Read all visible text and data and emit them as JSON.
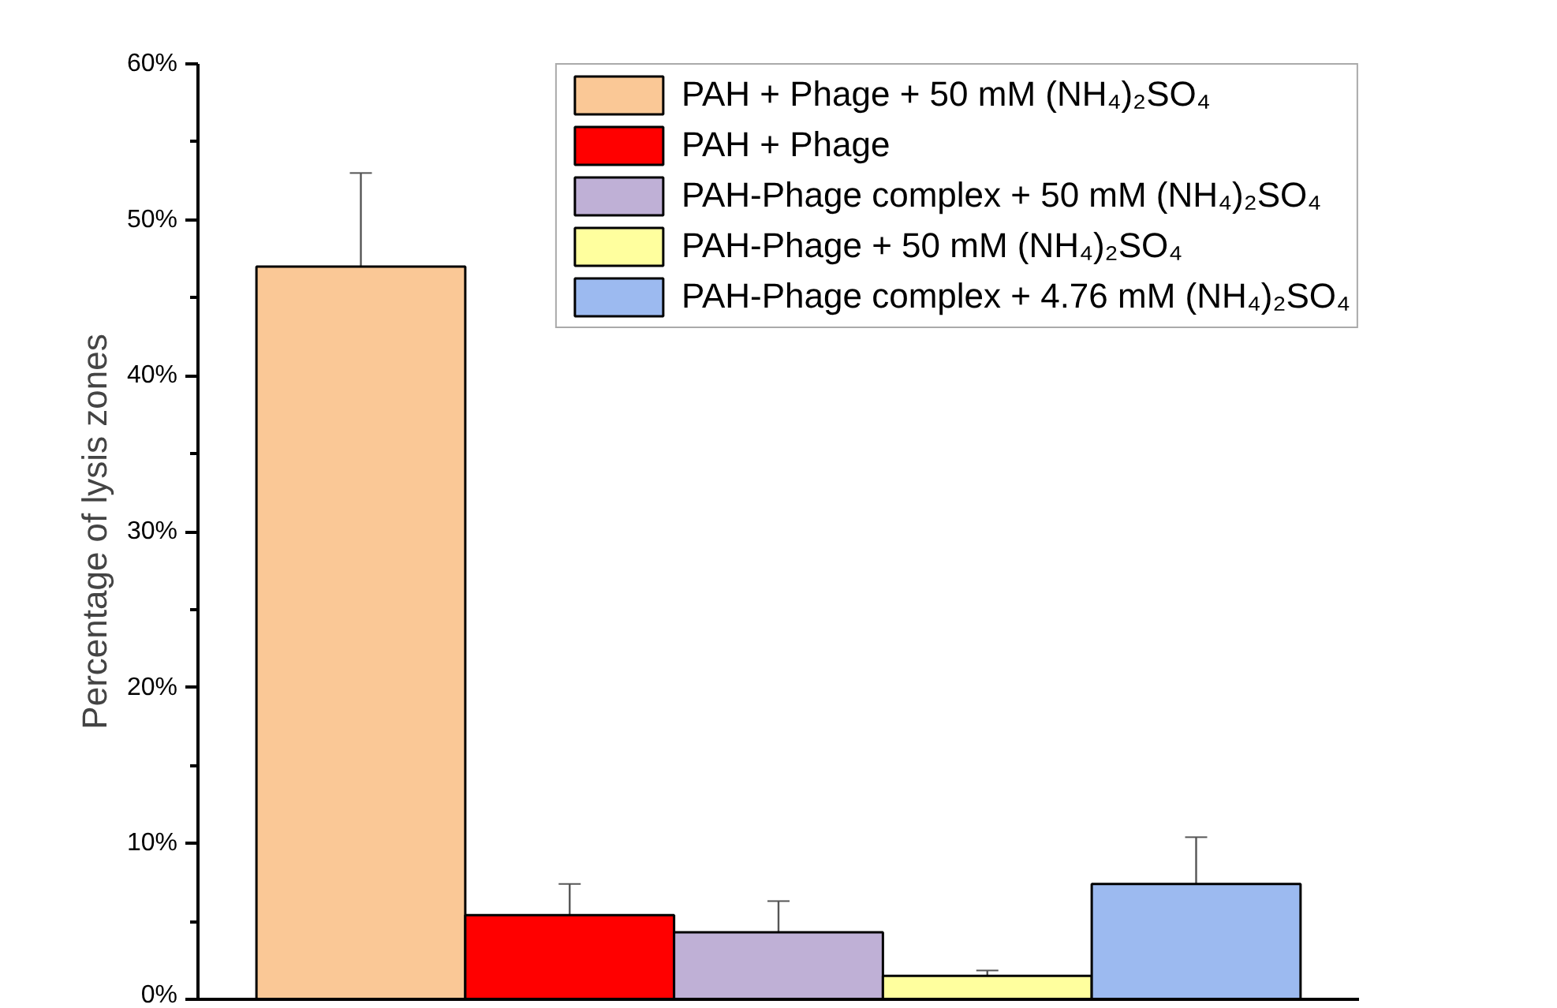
{
  "chart_data": {
    "type": "bar",
    "ylabel": "Percentage of lysis zones",
    "categories": [
      null,
      null,
      null,
      null,
      null
    ],
    "series": [
      {
        "name": "PAH + Phage + 50 mM (NH₄)₂SO₄",
        "color": "#fac896",
        "values": [
          47,
          null,
          null,
          null,
          null
        ],
        "errors": [
          6,
          null,
          null,
          null,
          null
        ]
      },
      {
        "name": "PAH + Phage",
        "color": "#ff0000",
        "values": [
          null,
          5.4,
          null,
          null,
          null
        ],
        "errors": [
          null,
          2,
          null,
          null,
          null
        ]
      },
      {
        "name": "PAH-Phage complex + 50 mM (NH₄)₂SO₄",
        "color": "#bfb0d6",
        "values": [
          null,
          null,
          4.3,
          null,
          null
        ],
        "errors": [
          null,
          null,
          2,
          null,
          null
        ]
      },
      {
        "name": "PAH-Phage + 50 mM (NH₄)₂SO₄",
        "color": "#ffff9e",
        "values": [
          null,
          null,
          null,
          1.5,
          null
        ],
        "errors": [
          null,
          null,
          null,
          0.35,
          null
        ]
      },
      {
        "name": "PAH-Phage complex + 4.76 mM (NH₄)₂SO₄",
        "color": "#9cbaf0",
        "values": [
          null,
          null,
          null,
          null,
          7.4
        ],
        "errors": [
          null,
          null,
          null,
          null,
          3
        ]
      }
    ],
    "ylim": [
      0,
      60
    ],
    "yticks": [
      {
        "value": 0,
        "label": "0%"
      },
      {
        "value": 5,
        "label": null
      },
      {
        "value": 10,
        "label": "10%"
      },
      {
        "value": 15,
        "label": null
      },
      {
        "value": 20,
        "label": "20%"
      },
      {
        "value": 25,
        "label": null
      },
      {
        "value": 30,
        "label": "30%"
      },
      {
        "value": 35,
        "label": null
      },
      {
        "value": 40,
        "label": "40%"
      },
      {
        "value": 45,
        "label": null
      },
      {
        "value": 50,
        "label": "50%"
      },
      {
        "value": 55,
        "label": null
      },
      {
        "value": 60,
        "label": "60%"
      }
    ],
    "tick_labels": "y",
    "grid": false,
    "legend": "top right"
  }
}
